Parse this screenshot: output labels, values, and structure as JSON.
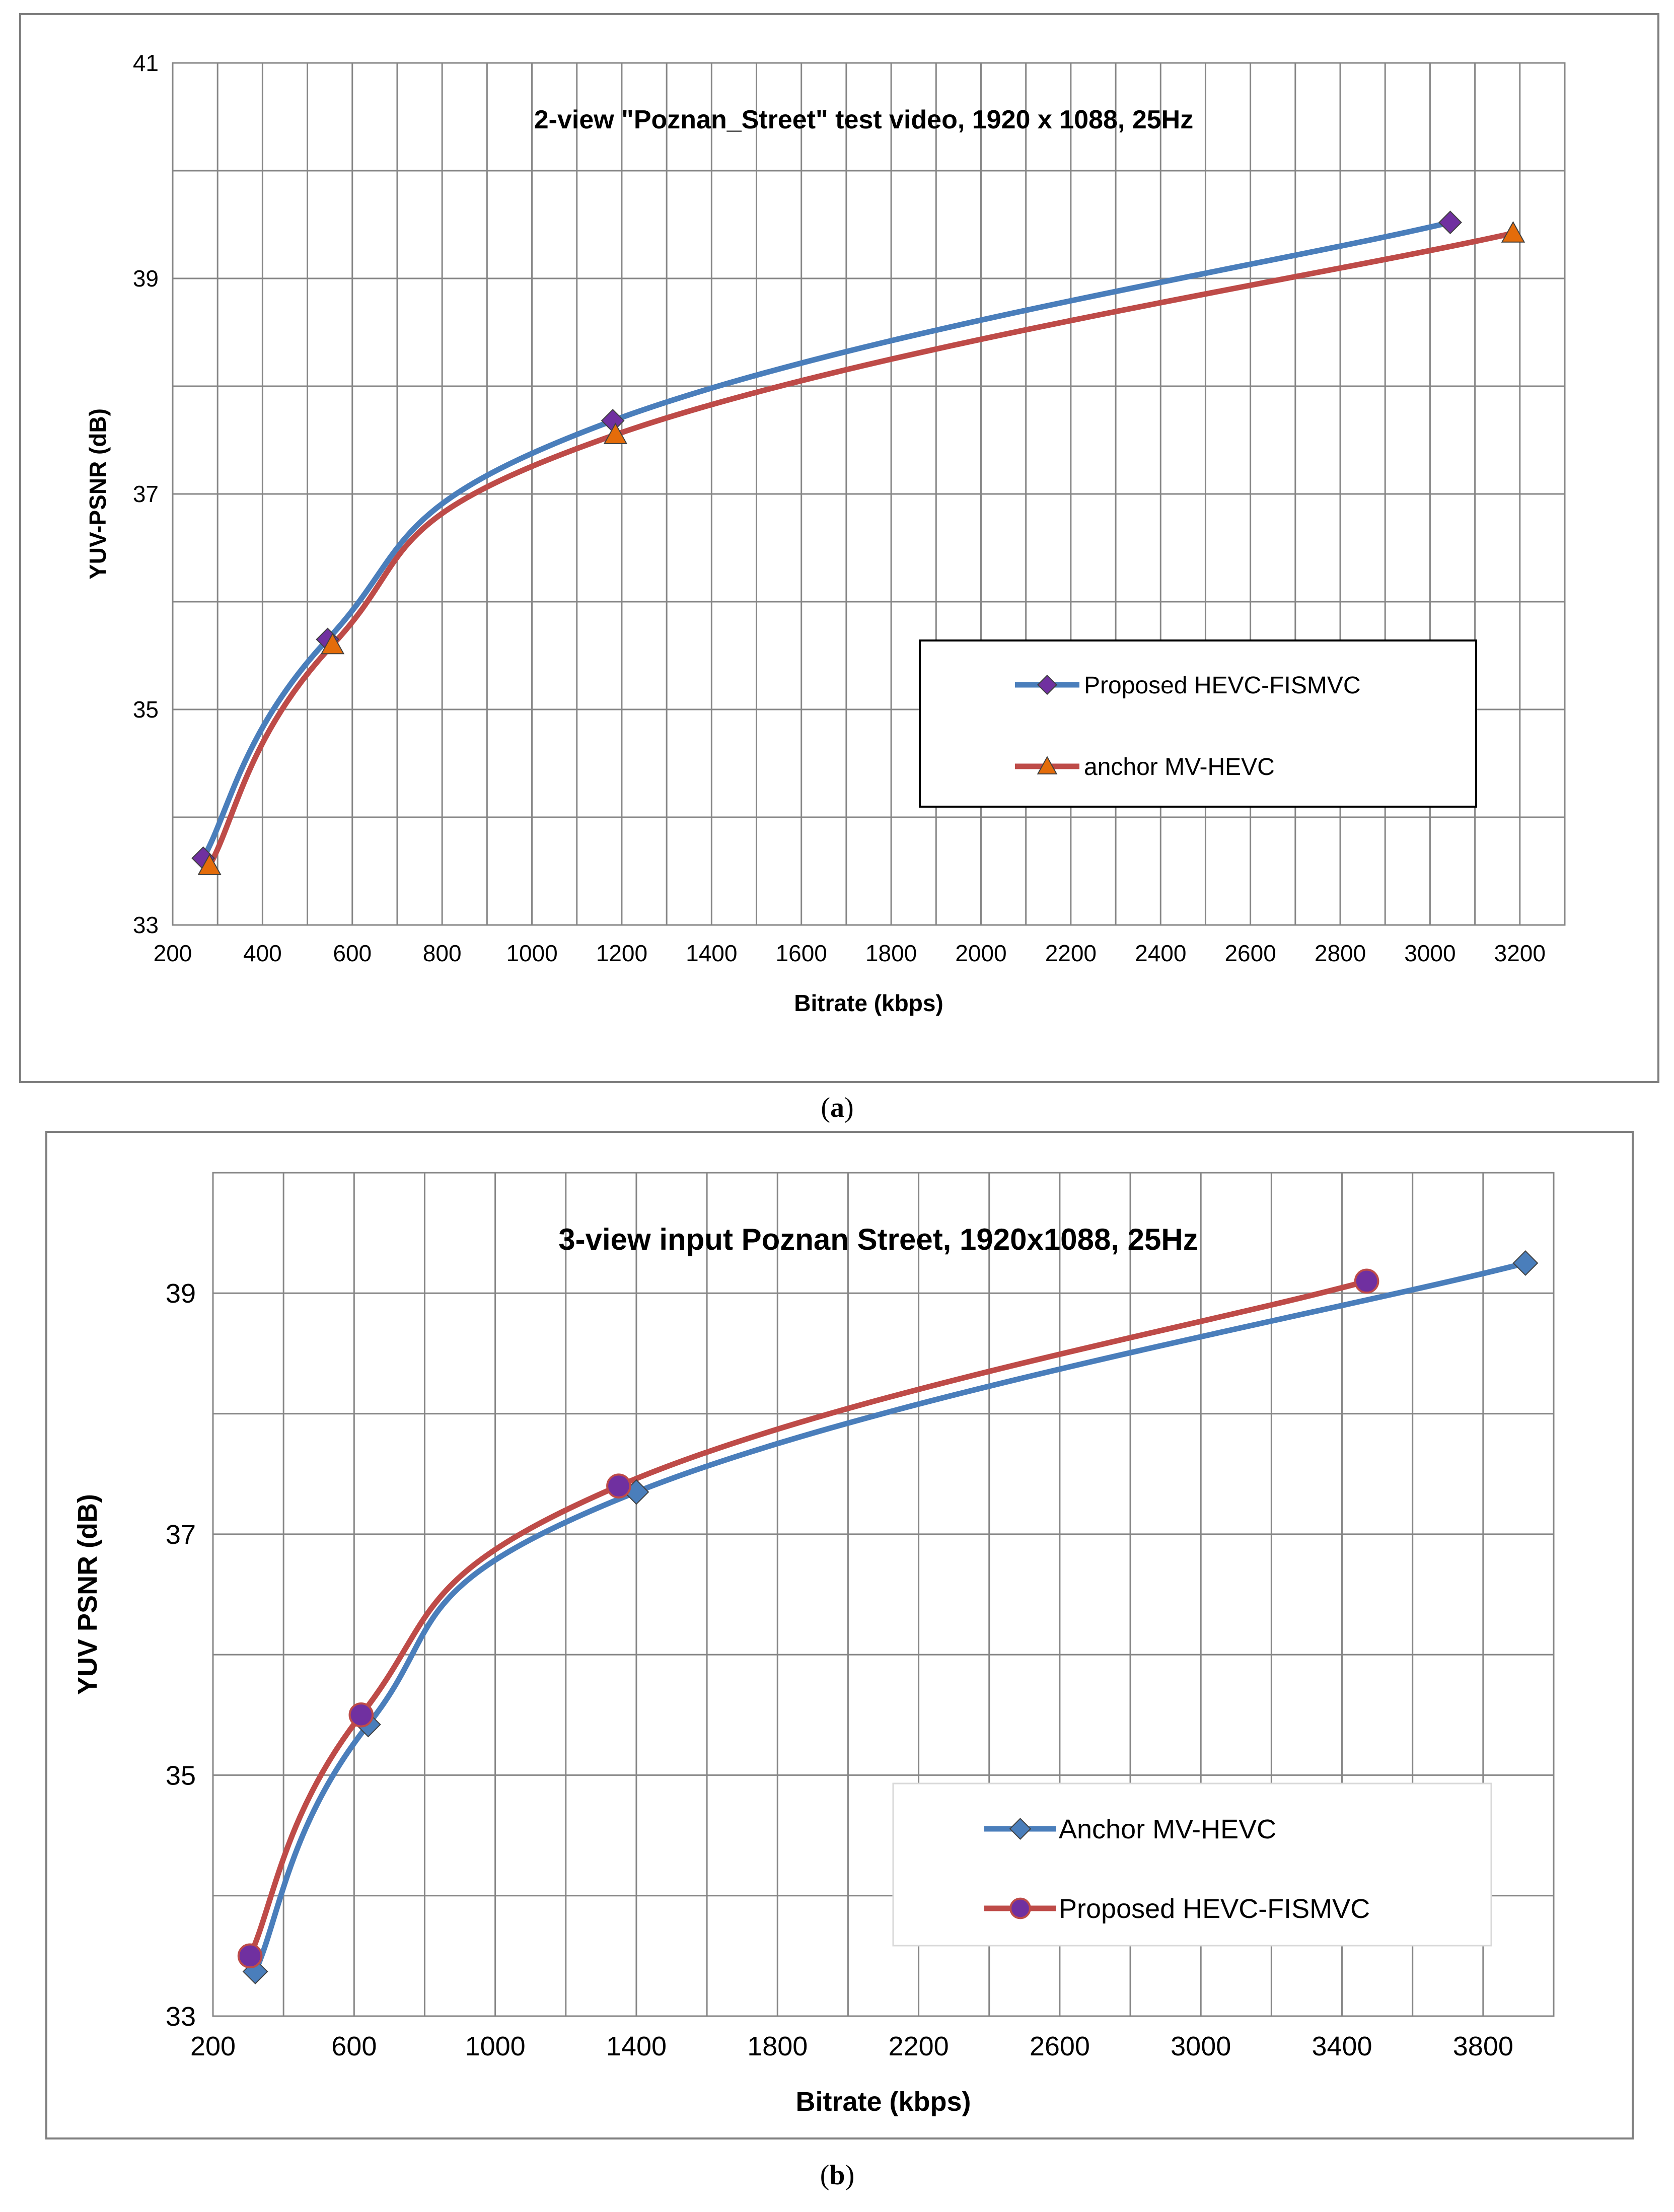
{
  "figure": {
    "caption_a_open": "(",
    "caption_a_letter": "a",
    "caption_a_close": ")",
    "caption_b_open": "(",
    "caption_b_letter": "b",
    "caption_b_close": ")"
  },
  "colors": {
    "blue": "#4a7ebb",
    "red": "#be4b48",
    "purple_marker": "#7030a0",
    "orange_marker": "#e46c0a",
    "grid": "#868686"
  },
  "chart_data": [
    {
      "id": "a",
      "type": "line",
      "title": "2-view \"Poznan_Street\"  test video, 1920  x 1088,  25Hz",
      "xlabel": "Bitrate (kbps)",
      "ylabel": "YUV-PSNR (dB)",
      "xlim": [
        200,
        3300
      ],
      "ylim": [
        33,
        41
      ],
      "xticks": [
        200,
        400,
        600,
        800,
        1000,
        1200,
        1400,
        1600,
        1800,
        2000,
        2200,
        2400,
        2600,
        2800,
        3000,
        3200
      ],
      "yticks": [
        33,
        35,
        37,
        39,
        41
      ],
      "ygrid": [
        33,
        34,
        35,
        36,
        37,
        38,
        39,
        40,
        41
      ],
      "legend_position": "lower-right",
      "series": [
        {
          "name": "Proposed HEVC-FISMVC",
          "color": "#4a7ebb",
          "marker": "diamond",
          "marker_color": "#7030a0",
          "x": [
            268,
            545,
            1180,
            3045
          ],
          "y": [
            33.62,
            35.65,
            37.68,
            39.52
          ]
        },
        {
          "name": "anchor MV-HEVC",
          "color": "#be4b48",
          "marker": "triangle",
          "marker_color": "#e46c0a",
          "x": [
            282,
            556,
            1186,
            3185
          ],
          "y": [
            33.55,
            35.6,
            37.55,
            39.42
          ]
        }
      ]
    },
    {
      "id": "b",
      "type": "line",
      "title": "3-view input Poznan Street, 1920x1088,  25Hz",
      "xlabel": "Bitrate (kbps)",
      "ylabel": "YUV PSNR (dB)",
      "xlim": [
        200,
        4000
      ],
      "ylim": [
        33,
        40
      ],
      "xticks": [
        200,
        600,
        1000,
        1400,
        1800,
        2200,
        2600,
        3000,
        3400,
        3800
      ],
      "yticks": [
        33,
        35,
        37,
        39
      ],
      "ygrid": [
        33,
        34,
        35,
        36,
        37,
        38,
        39,
        40
      ],
      "legend_position": "lower-right",
      "series": [
        {
          "name": "Anchor MV-HEVC",
          "color": "#4a7ebb",
          "marker": "diamond",
          "marker_color": "#4a7ebb",
          "x": [
            320,
            640,
            1400,
            3920
          ],
          "y": [
            33.37,
            35.42,
            37.35,
            39.25
          ]
        },
        {
          "name": "Proposed HEVC-FISMVC",
          "color": "#be4b48",
          "marker": "circle",
          "marker_color": "#7030a0",
          "x": [
            305,
            620,
            1350,
            3470
          ],
          "y": [
            33.5,
            35.5,
            37.4,
            39.1
          ]
        }
      ]
    }
  ]
}
